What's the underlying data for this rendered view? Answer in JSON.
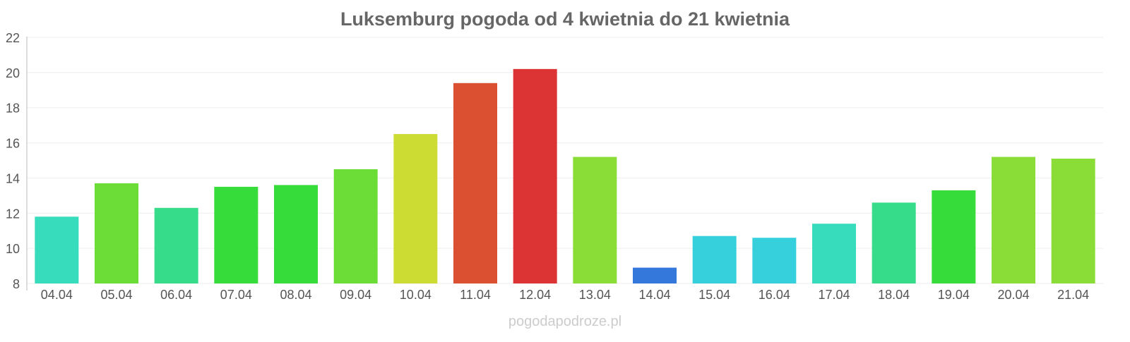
{
  "chart_data": {
    "type": "bar",
    "title": "Luksemburg pogoda od 4 kwietnia do 21 kwietnia",
    "xlabel": "",
    "ylabel": "",
    "ylim": [
      8,
      22
    ],
    "yticks": [
      8,
      10,
      12,
      14,
      16,
      18,
      20,
      22
    ],
    "grid": true,
    "categories": [
      "04.04",
      "05.04",
      "06.04",
      "07.04",
      "08.04",
      "09.04",
      "10.04",
      "11.04",
      "12.04",
      "13.04",
      "14.04",
      "15.04",
      "16.04",
      "17.04",
      "18.04",
      "19.04",
      "20.04",
      "21.04"
    ],
    "values": [
      11.8,
      13.7,
      12.3,
      13.5,
      13.6,
      14.5,
      16.5,
      19.4,
      20.2,
      15.2,
      8.9,
      10.7,
      10.6,
      11.4,
      12.6,
      13.3,
      15.2,
      15.1
    ],
    "colors": [
      "#36dcbc",
      "#6cdc36",
      "#36dc8a",
      "#36dc3a",
      "#36dc3a",
      "#6cdc36",
      "#cddc32",
      "#dc5032",
      "#dc3434",
      "#8adc36",
      "#3478dc",
      "#36d0dc",
      "#36d0dc",
      "#36dcbc",
      "#36dc8a",
      "#36dc3a",
      "#8adc36",
      "#8adc36"
    ],
    "watermark": "pogodapodroze.pl"
  }
}
